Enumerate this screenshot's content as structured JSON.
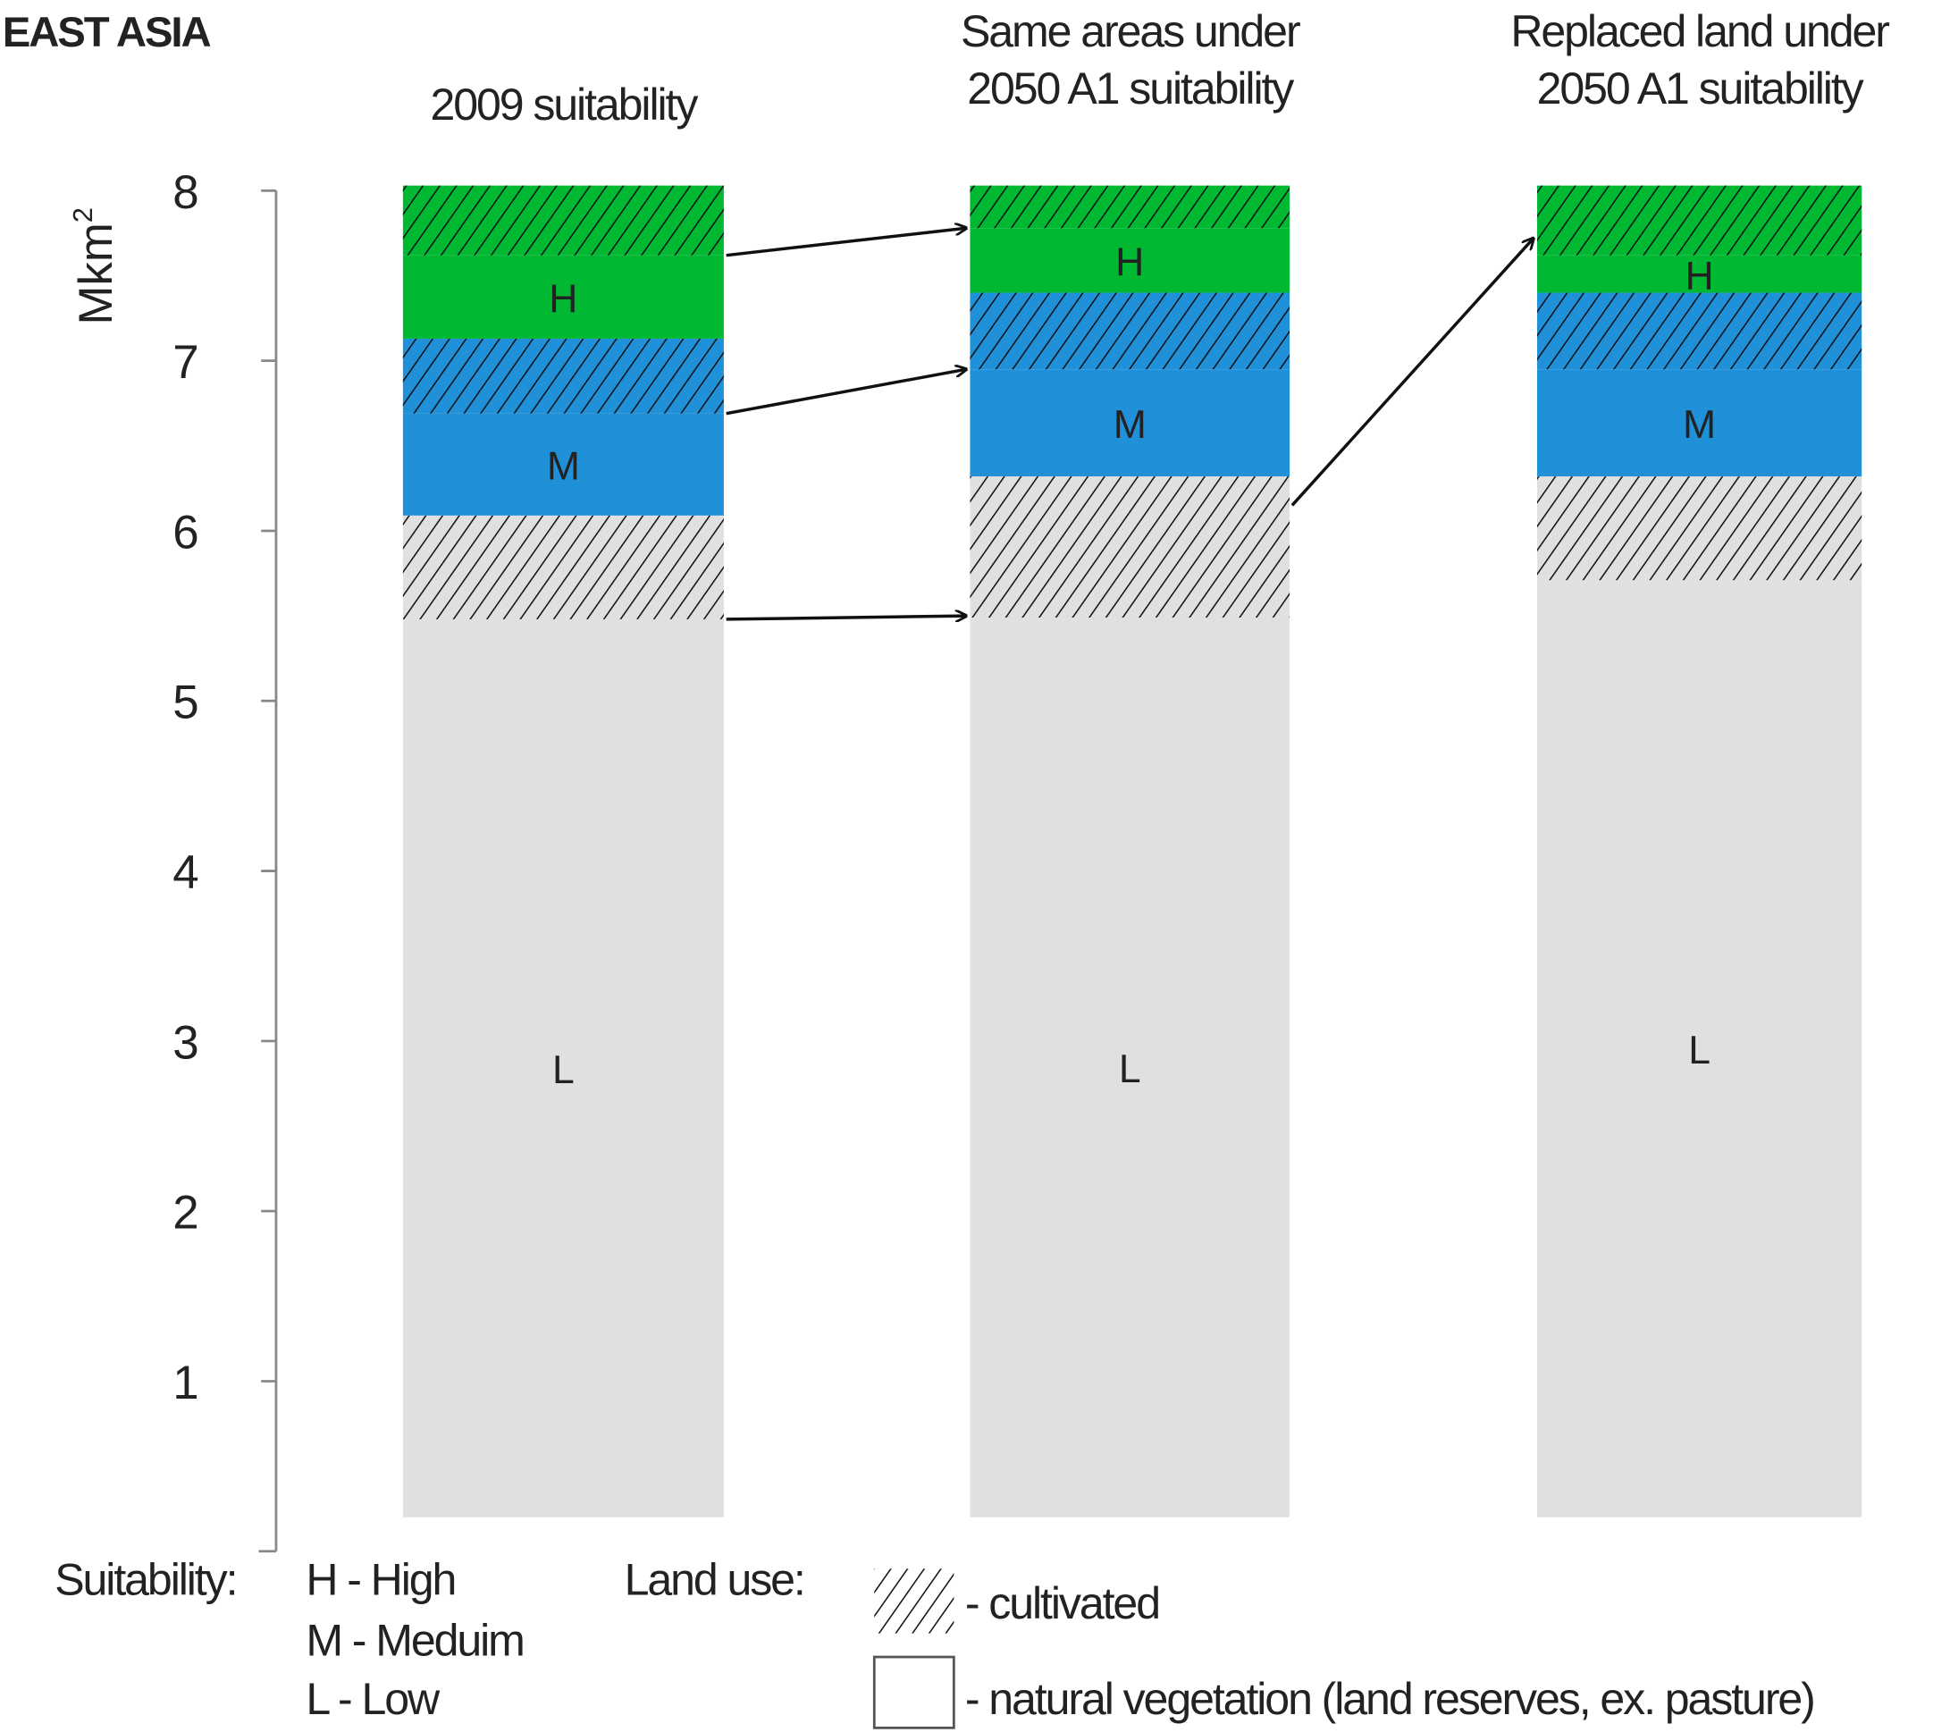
{
  "chart_data": {
    "type": "bar",
    "stacked": true,
    "region_title": "EAST ASIA",
    "ylabel": "Mkm",
    "ylabel_sup": "2",
    "ylim": [
      0,
      8
    ],
    "yticks": [
      "1",
      "2",
      "3",
      "4",
      "5",
      "6",
      "7",
      "8"
    ],
    "bar_base": 0.2,
    "colors": {
      "H": "#00b832",
      "M": "#2090d8",
      "L": "#e0e0e0",
      "hatch": "#111111"
    },
    "bars": [
      {
        "title": [
          "",
          "2009 suitability"
        ],
        "boundaries": [
          0.2,
          5.48,
          6.09,
          6.69,
          7.13,
          7.62,
          8.03
        ]
      },
      {
        "title": [
          "Same areas under",
          "2050 A1 suitability"
        ],
        "boundaries": [
          0.2,
          5.49,
          6.32,
          6.95,
          7.4,
          7.78,
          8.03
        ]
      },
      {
        "title": [
          "Replaced land under",
          "2050 A1 suitability"
        ],
        "boundaries": [
          0.2,
          5.71,
          6.32,
          6.95,
          7.4,
          7.62,
          8.03
        ]
      }
    ],
    "segment_order": [
      {
        "suitability": "L",
        "land_use": "natural"
      },
      {
        "suitability": "L",
        "land_use": "cultivated"
      },
      {
        "suitability": "M",
        "land_use": "natural"
      },
      {
        "suitability": "M",
        "land_use": "cultivated"
      },
      {
        "suitability": "H",
        "land_use": "natural"
      },
      {
        "suitability": "H",
        "land_use": "cultivated"
      }
    ],
    "arrows": [
      {
        "from_bar": 0,
        "from_value": 7.62,
        "to_bar": 1,
        "to_value": 7.78
      },
      {
        "from_bar": 0,
        "from_value": 6.69,
        "to_bar": 1,
        "to_value": 6.95
      },
      {
        "from_bar": 0,
        "from_value": 5.48,
        "to_bar": 1,
        "to_value": 5.5
      },
      {
        "from_bar": 1,
        "from_value": 6.15,
        "to_bar": 2,
        "to_value": 7.72
      }
    ],
    "legend": {
      "suitability_label": "Suitability:",
      "suitability_items": [
        "H - High",
        "M - Meduim",
        "L - Low"
      ],
      "land_use_label": "Land use:",
      "cultivated": "- cultivated",
      "natural": "- natural vegetation (land reserves, ex. pasture)"
    }
  }
}
